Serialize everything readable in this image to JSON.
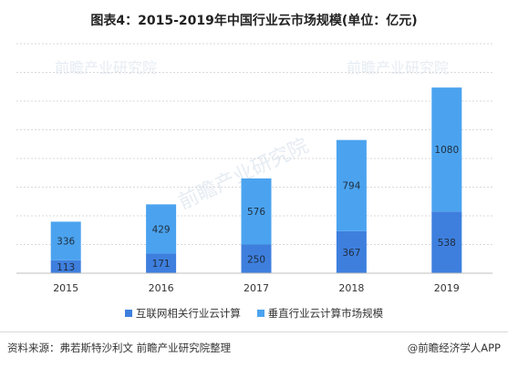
{
  "title": "图表4：2015-2019年中国行业云市场规模(单位：亿元)",
  "source": "资料来源：弗若斯特沙利文 前瞻产业研究院整理",
  "brand": "@前瞻经济学人APP",
  "watermark": "前瞻产业研究院",
  "colors": {
    "internet": "#3e7fde",
    "vertical": "#4ba3ef",
    "grid": "#d9d9d9",
    "axis": "#bfbfbf"
  },
  "chart_data": {
    "type": "bar",
    "stacked": true,
    "categories": [
      "2015",
      "2016",
      "2017",
      "2018",
      "2019"
    ],
    "series": [
      {
        "name": "互联网相关行业云计算",
        "values": [
          113,
          171,
          250,
          367,
          538
        ]
      },
      {
        "name": "垂直行业云计算市场规模",
        "values": [
          336,
          429,
          576,
          794,
          1080
        ]
      }
    ],
    "ylim": [
      0,
      2000
    ],
    "grid": true,
    "y_tick_labels_visible": false,
    "legend_position": "bottom"
  }
}
